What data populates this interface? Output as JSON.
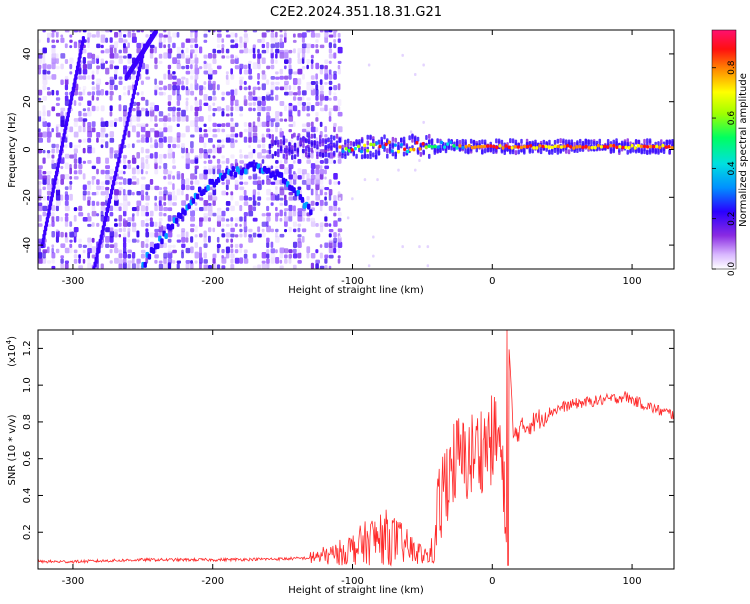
{
  "figure": {
    "title": "C2E2.2024.351.18.31.G21"
  },
  "chart_data": [
    {
      "type": "heatmap",
      "title": "",
      "xlabel": "Height of straight line (km)",
      "ylabel": "Frequency (Hz)",
      "xlim": [
        -325,
        130
      ],
      "ylim": [
        -50,
        50
      ],
      "xticks": [
        -300,
        -200,
        -100,
        0,
        100
      ],
      "xtick_labels": [
        "-300",
        "-200",
        "-100",
        "0",
        "100"
      ],
      "yticks": [
        -40,
        -20,
        0,
        20,
        40
      ],
      "ytick_labels": [
        "-40",
        "-20",
        "0",
        "20",
        "40"
      ],
      "colorbar": {
        "label": "Normalized spectral amplitude",
        "range": [
          0,
          0.95
        ],
        "ticks": [
          0,
          0.2,
          0.4,
          0.6,
          0.8
        ],
        "tick_labels": [
          "0.0",
          "0.2",
          "0.4",
          "0.6",
          "0.8"
        ],
        "colormap": "rainbow (white-purple-blue-cyan-green-yellow-red-magenta)"
      },
      "features": {
        "noise_region_x": [
          -325,
          -110
        ],
        "sparse_region_x": [
          -110,
          -45
        ],
        "carrier_line": {
          "x_start": -110,
          "x_end": 130,
          "frequency_hz": 1,
          "amplitude_range": [
            0.3,
            0.9
          ]
        },
        "arc": [
          {
            "x": -250,
            "y": -48
          },
          {
            "x": -230,
            "y": -32
          },
          {
            "x": -210,
            "y": -18
          },
          {
            "x": -190,
            "y": -10
          },
          {
            "x": -170,
            "y": -7
          },
          {
            "x": -150,
            "y": -12
          },
          {
            "x": -130,
            "y": -25
          }
        ]
      },
      "grid": false
    },
    {
      "type": "line",
      "title": "",
      "xlabel": "Height of straight line (km)",
      "ylabel": "SNR (10 * v/v)",
      "y_multiplier": "(x10",
      "y_multiplier_exp": "4",
      "y_multiplier_close": ")",
      "xlim": [
        -325,
        130
      ],
      "ylim": [
        0,
        1.3
      ],
      "xticks": [
        -300,
        -200,
        -100,
        0,
        100
      ],
      "xtick_labels": [
        "-300",
        "-200",
        "-100",
        "0",
        "100"
      ],
      "yticks": [
        0.2,
        0.4,
        0.6,
        0.8,
        1.0,
        1.2
      ],
      "ytick_labels": [
        "0.2",
        "0.4",
        "0.6",
        "0.8",
        "1.0",
        "1.2"
      ],
      "series_color": "#ff2a2a",
      "grid": false,
      "series": [
        {
          "name": "",
          "x": [
            -325,
            -300,
            -250,
            -200,
            -150,
            -130,
            -115,
            -100,
            -85,
            -75,
            -65,
            -55,
            -45,
            -40,
            -35,
            -30,
            -25,
            -20,
            -10,
            0,
            5,
            10,
            12,
            15,
            20,
            30,
            40,
            50,
            60,
            70,
            80,
            90,
            95,
            100,
            110,
            120,
            130
          ],
          "y": [
            0.04,
            0.04,
            0.05,
            0.05,
            0.055,
            0.06,
            0.08,
            0.13,
            0.2,
            0.22,
            0.17,
            0.1,
            0.07,
            0.2,
            0.45,
            0.55,
            0.6,
            0.58,
            0.65,
            0.7,
            0.72,
            0.2,
            1.2,
            0.72,
            0.76,
            0.8,
            0.85,
            0.88,
            0.9,
            0.91,
            0.92,
            0.93,
            0.94,
            0.92,
            0.89,
            0.86,
            0.84
          ]
        }
      ]
    }
  ]
}
